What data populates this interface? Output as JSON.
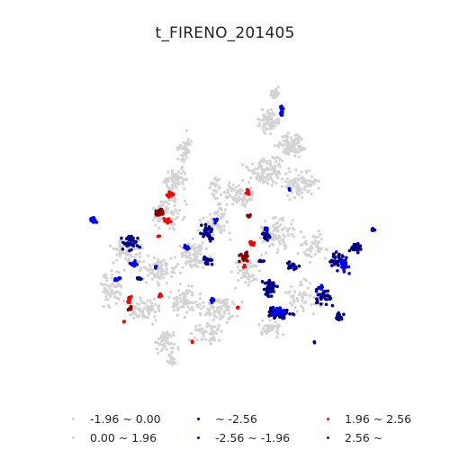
{
  "title": "t_FIRENO_201405",
  "legend": {
    "items": [
      {
        "label": "-1.96 ~ 0.00",
        "color": "#d3d3d3"
      },
      {
        "label": "0.00 ~ 1.96",
        "color": "#d3d3d3"
      },
      {
        "label": "~ -2.56",
        "color": "#00008b"
      },
      {
        "label": "-2.56 ~ -1.96",
        "color": "#0000ff"
      },
      {
        "label": "1.96 ~ 2.56",
        "color": "#ff0000"
      },
      {
        "label": "2.56 ~",
        "color": "#8b0000"
      }
    ]
  },
  "colors": {
    "not_significant": "#d3d3d3",
    "cold_99": "#00008b",
    "cold_95": "#0000ff",
    "hot_95": "#ff0000",
    "hot_99": "#8b0000"
  }
}
